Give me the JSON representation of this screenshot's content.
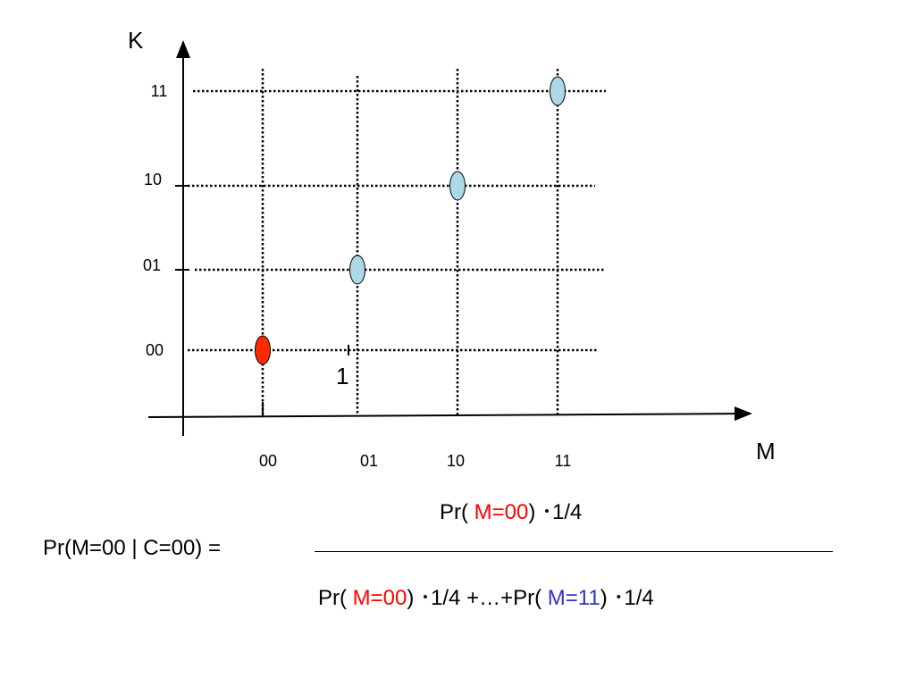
{
  "chart": {
    "x_axis_label": "M",
    "y_axis_label": "K",
    "x_ticks": [
      "00",
      "01",
      "10",
      "11"
    ],
    "y_ticks": [
      "00",
      "01",
      "10",
      "11"
    ],
    "annotation": "1",
    "points": [
      {
        "m": "00",
        "k": "00",
        "color": "#ff2a00"
      },
      {
        "m": "01",
        "k": "01",
        "color": "#add8e6"
      },
      {
        "m": "10",
        "k": "10",
        "color": "#add8e6"
      },
      {
        "m": "11",
        "k": "11",
        "color": "#add8e6"
      }
    ]
  },
  "formula": {
    "lhs": "Pr(M=00 | C=00) =",
    "numerator": {
      "open": "Pr( ",
      "m": "M=00",
      "close": ") ",
      "times": "･1/4"
    },
    "denominator": {
      "open1": "Pr( ",
      "m1": "M=00",
      "close1": ") ",
      "mid": "･1/4 +…+Pr( ",
      "m2": "M=11",
      "close2": ") ",
      "times": "･1/4"
    }
  },
  "colors": {
    "highlight_red": "#ff0000",
    "highlight_blue": "#3333cc"
  }
}
